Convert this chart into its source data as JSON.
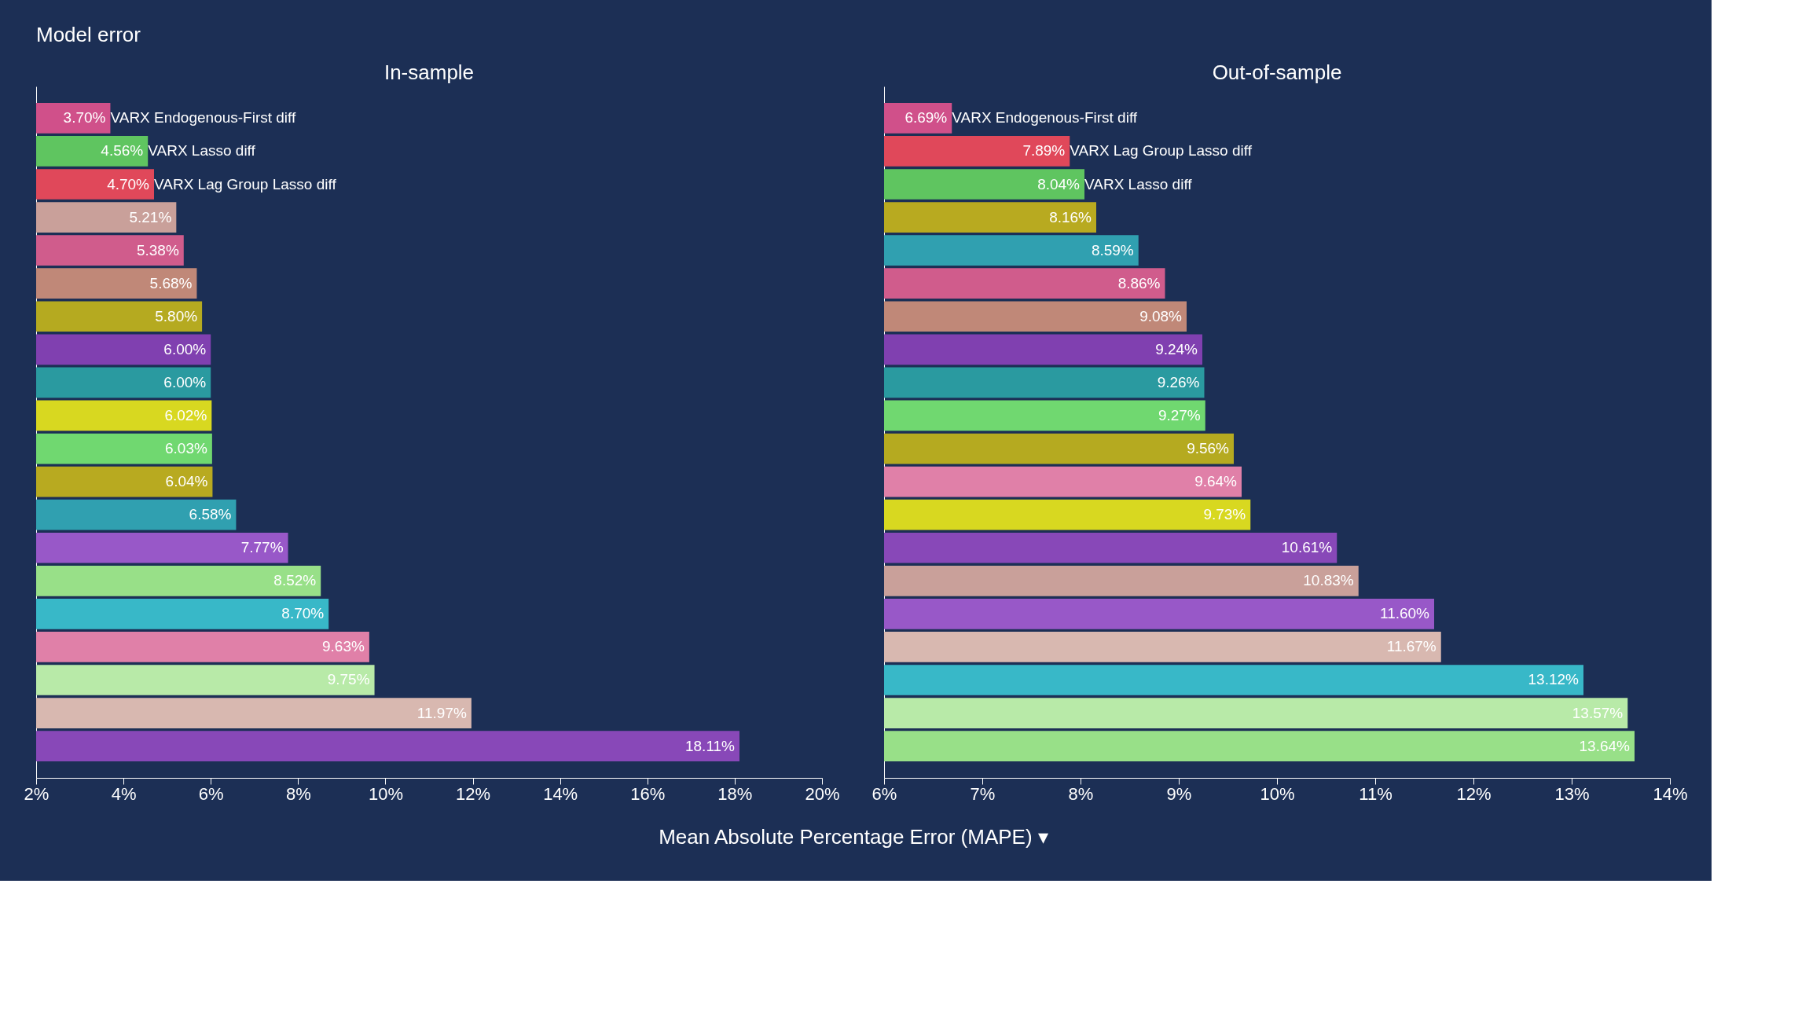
{
  "chart_data": [
    {
      "type": "bar",
      "orientation": "horizontal",
      "title": "In-sample",
      "annotations": [
        "Model error"
      ],
      "tick_labels": "x",
      "grid": false,
      "categories": [
        "VARX Endogenous-First diff",
        "VARX Lasso diff",
        "VARX Lag Group Lasso diff",
        null,
        null,
        null,
        null,
        null,
        null,
        null,
        null,
        null,
        null,
        null,
        null,
        null,
        null,
        null,
        null,
        null
      ],
      "values": [
        3.7,
        4.56,
        4.7,
        5.21,
        5.38,
        5.68,
        5.8,
        6.0,
        6.0,
        6.02,
        6.03,
        6.04,
        6.58,
        7.77,
        8.52,
        8.7,
        9.63,
        9.75,
        11.97,
        18.11
      ],
      "value_labels": [
        "3.70%",
        "4.56%",
        "4.70%",
        "5.21%",
        "5.38%",
        "5.68%",
        "5.80%",
        "6.00%",
        "6.00%",
        "6.02%",
        "6.03%",
        "6.04%",
        "6.58%",
        "7.77%",
        "8.52%",
        "8.70%",
        "9.63%",
        "9.75%",
        "11.97%",
        "18.11%"
      ],
      "colors": [
        "#d0508a",
        "#5fc560",
        "#e0485a",
        "#c9a09a",
        "#d05c8c",
        "#c08878",
        "#b5aa20",
        "#8040b0",
        "#2a9aa0",
        "#d8d820",
        "#70d870",
        "#b8aa20",
        "#30a0b0",
        "#9858c8",
        "#98e088",
        "#38b8c8",
        "#e080a8",
        "#b8eaa8",
        "#d8b8b0",
        "#8848b8"
      ],
      "xlim": [
        2,
        20
      ],
      "xticks": [
        {
          "value": 2,
          "label": "2%"
        },
        {
          "value": 4,
          "label": "4%"
        },
        {
          "value": 6,
          "label": "6%"
        },
        {
          "value": 8,
          "label": "8%"
        },
        {
          "value": 10,
          "label": "10%"
        },
        {
          "value": 12,
          "label": "12%"
        },
        {
          "value": 14,
          "label": "14%"
        },
        {
          "value": 16,
          "label": "16%"
        },
        {
          "value": 18,
          "label": "18%"
        },
        {
          "value": 20,
          "label": "20%"
        }
      ]
    },
    {
      "type": "bar",
      "orientation": "horizontal",
      "title": "Out-of-sample",
      "tick_labels": "x",
      "grid": false,
      "categories": [
        "VARX Endogenous-First diff",
        "VARX Lag Group Lasso diff",
        "VARX Lasso diff",
        null,
        null,
        null,
        null,
        null,
        null,
        null,
        null,
        null,
        null,
        null,
        null,
        null,
        null,
        null,
        null,
        null
      ],
      "values": [
        6.69,
        7.89,
        8.04,
        8.16,
        8.59,
        8.86,
        9.08,
        9.24,
        9.26,
        9.27,
        9.56,
        9.64,
        9.73,
        10.61,
        10.83,
        11.6,
        11.67,
        13.12,
        13.57,
        13.64
      ],
      "value_labels": [
        "6.69%",
        "7.89%",
        "8.04%",
        "8.16%",
        "8.59%",
        "8.86%",
        "9.08%",
        "9.24%",
        "9.26%",
        "9.27%",
        "9.56%",
        "9.64%",
        "9.73%",
        "10.61%",
        "10.83%",
        "11.60%",
        "11.67%",
        "13.12%",
        "13.57%",
        "13.64%"
      ],
      "colors": [
        "#d0508a",
        "#e0485a",
        "#5fc560",
        "#b8aa20",
        "#30a0b0",
        "#d05c8c",
        "#c08878",
        "#8040b0",
        "#2a9aa0",
        "#70d870",
        "#b5aa20",
        "#e080a8",
        "#d8d820",
        "#8848b8",
        "#c9a09a",
        "#9858c8",
        "#d8b8b0",
        "#38b8c8",
        "#b8eaa8",
        "#98e088"
      ],
      "xlim": [
        6,
        14
      ],
      "xticks": [
        {
          "value": 6,
          "label": "6%"
        },
        {
          "value": 7,
          "label": "7%"
        },
        {
          "value": 8,
          "label": "8%"
        },
        {
          "value": 9,
          "label": "9%"
        },
        {
          "value": 10,
          "label": "10%"
        },
        {
          "value": 11,
          "label": "11%"
        },
        {
          "value": 12,
          "label": "12%"
        },
        {
          "value": 13,
          "label": "13%"
        },
        {
          "value": 14,
          "label": "14%"
        }
      ]
    },
    {
      "type": "other",
      "annotations": [
        "Mean Absolute Percentage Error (MAPE) ▾"
      ]
    }
  ]
}
